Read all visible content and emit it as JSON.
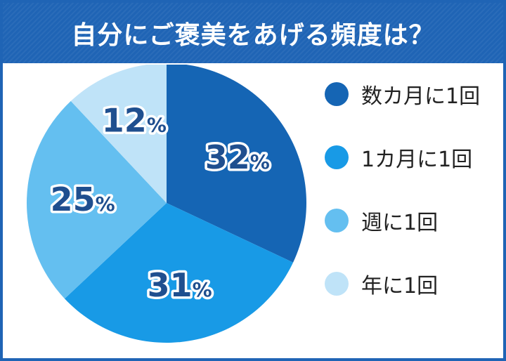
{
  "title": "自分にご褒美をあげる頻度は？",
  "colors": {
    "frame": "#1f64b5",
    "label_text": "#1f4f8f"
  },
  "chart_data": {
    "type": "pie",
    "categories": [
      "数カ月に1回",
      "1カ月に1回",
      "週に1回",
      "年に1回"
    ],
    "values": [
      32,
      31,
      25,
      12
    ],
    "unit": "%",
    "colors": [
      "#1565b4",
      "#189ae6",
      "#64bff0",
      "#bfe3f8"
    ],
    "start_angle_deg": 0,
    "direction": "clockwise",
    "legend_position": "right"
  }
}
